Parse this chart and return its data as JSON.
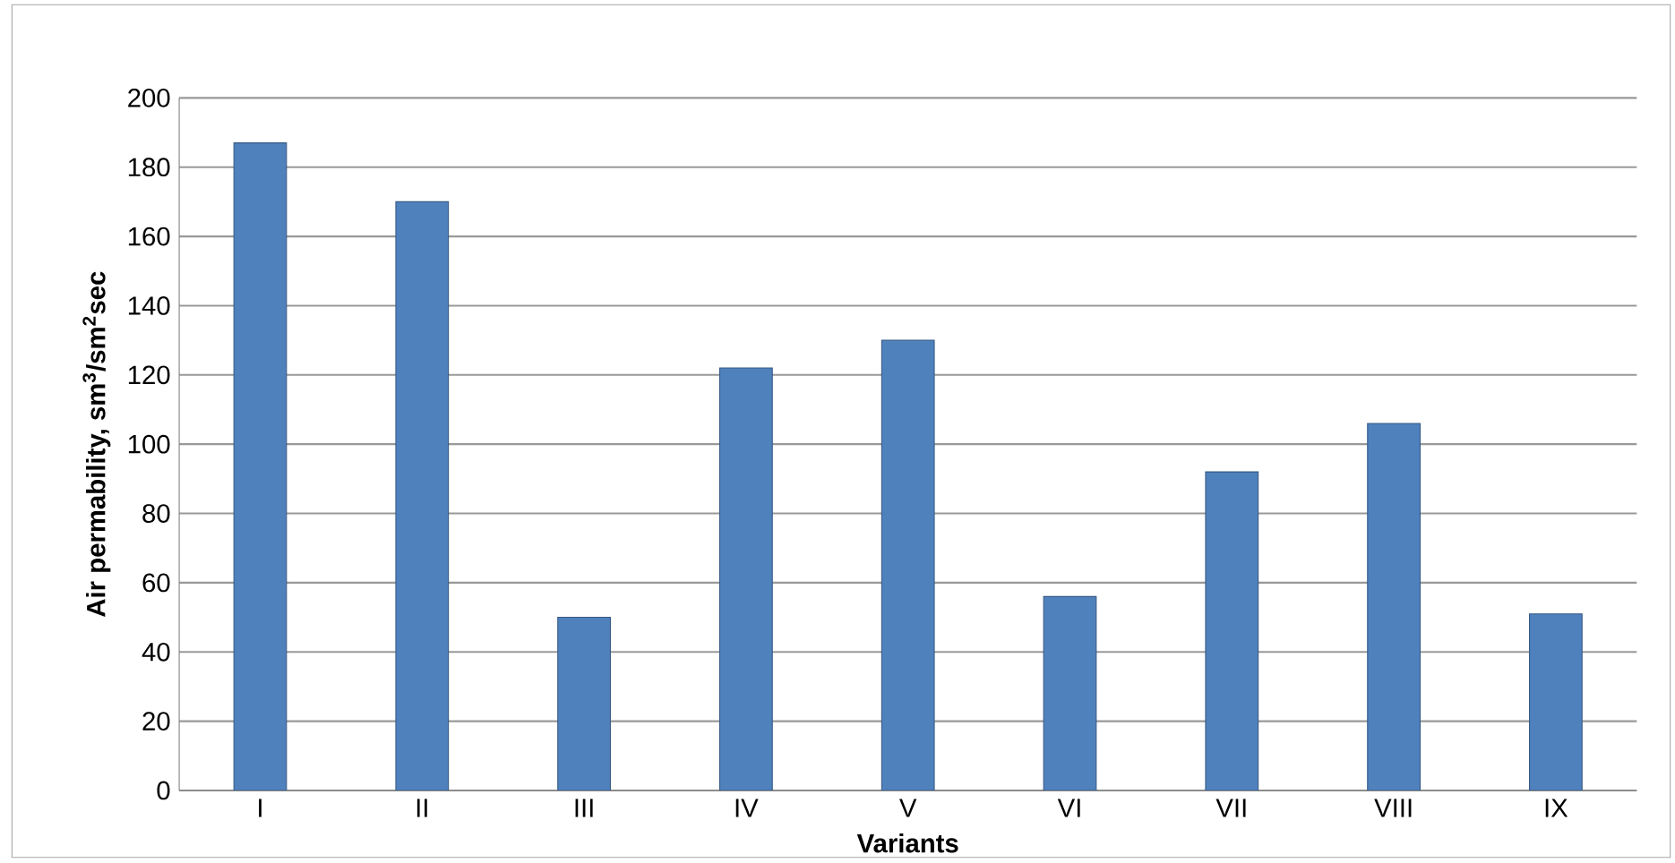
{
  "chart_data": {
    "type": "bar",
    "xlabel": "Variants",
    "ylabel": "Air permability, sm$^{3}$/sm$^{2}$sec",
    "categories": [
      "I",
      "II",
      "III",
      "IV",
      "V",
      "VI",
      "VII",
      "VIII",
      "IX"
    ],
    "values": [
      187,
      170,
      50,
      122,
      130,
      56,
      92,
      106,
      51
    ],
    "color": "#4f81bd",
    "ylim": [
      0,
      200
    ],
    "yticks": [
      0,
      20,
      40,
      60,
      80,
      100,
      120,
      140,
      160,
      180,
      200
    ],
    "grid": "y"
  }
}
